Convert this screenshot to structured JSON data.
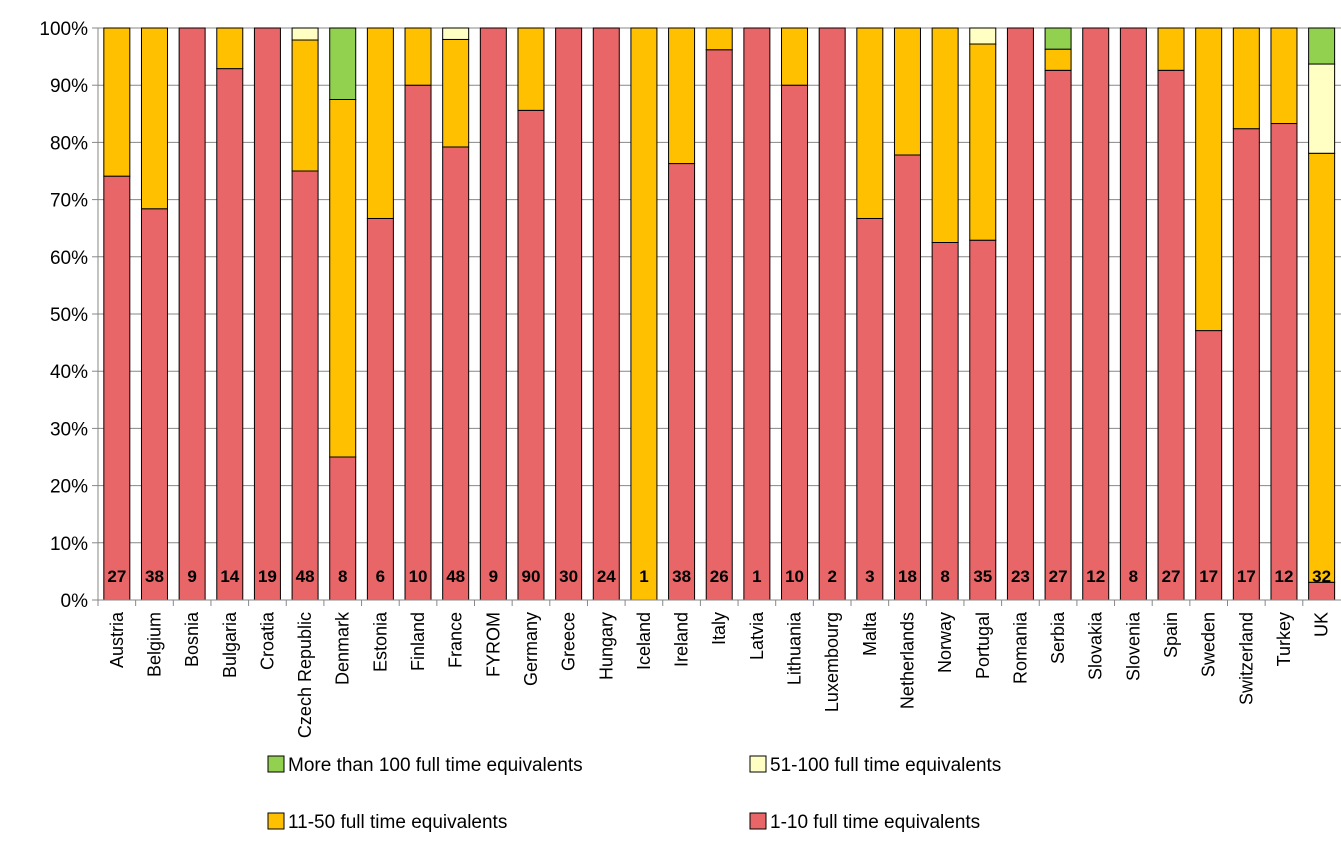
{
  "chart_data": {
    "type": "bar",
    "stacked": true,
    "percent": true,
    "categories": [
      "Austria",
      "Belgium",
      "Bosnia",
      "Bulgaria",
      "Croatia",
      "Czech Republic",
      "Denmark",
      "Estonia",
      "Finland",
      "France",
      "FYROM",
      "Germany",
      "Greece",
      "Hungary",
      "Iceland",
      "Ireland",
      "Italy",
      "Latvia",
      "Lithuania",
      "Luxembourg",
      "Malta",
      "Netherlands",
      "Norway",
      "Portugal",
      "Romania",
      "Serbia",
      "Slovakia",
      "Slovenia",
      "Spain",
      "Sweden",
      "Switzerland",
      "Turkey",
      "UK"
    ],
    "counts": [
      "27",
      "38",
      "9",
      "14",
      "19",
      "48",
      "8",
      "6",
      "10",
      "48",
      "9",
      "90",
      "30",
      "24",
      "1",
      "38",
      "26",
      "1",
      "10",
      "2",
      "3",
      "18",
      "8",
      "35",
      "23",
      "27",
      "12",
      "8",
      "27",
      "17",
      "17",
      "12",
      "32"
    ],
    "series": [
      {
        "name": "1-10 full time equivalents",
        "color": "#e96668",
        "values": [
          74.1,
          68.4,
          100,
          92.9,
          100,
          75.0,
          25.0,
          66.7,
          90.0,
          79.2,
          100,
          85.6,
          100,
          100,
          0,
          76.3,
          96.2,
          100,
          90.0,
          100,
          66.7,
          77.8,
          62.5,
          62.9,
          100,
          92.6,
          100,
          100,
          92.6,
          47.1,
          82.4,
          83.3,
          3.1
        ]
      },
      {
        "name": "11-50 full time equivalents",
        "color": "#ffc000",
        "values": [
          25.9,
          31.6,
          0,
          7.1,
          0,
          22.9,
          62.5,
          33.3,
          10.0,
          18.8,
          0,
          14.4,
          0,
          0,
          100,
          23.7,
          3.8,
          0,
          10.0,
          0,
          33.3,
          22.2,
          37.5,
          34.3,
          0,
          3.7,
          0,
          0,
          7.4,
          52.9,
          17.6,
          16.7,
          75.0
        ]
      },
      {
        "name": "51-100 full time equivalents",
        "color": "#ffffc4",
        "values": [
          0,
          0,
          0,
          0,
          0,
          2.1,
          0,
          0,
          0,
          2.0,
          0,
          0,
          0,
          0,
          0,
          0,
          0,
          0,
          0,
          0,
          0,
          0,
          0,
          2.8,
          0,
          0,
          0,
          0,
          0,
          0,
          0,
          0,
          15.6
        ]
      },
      {
        "name": "More than 100 full time equivalents",
        "color": "#92d050",
        "values": [
          0,
          0,
          0,
          0,
          0,
          0,
          12.5,
          0,
          0,
          0,
          0,
          0,
          0,
          0,
          0,
          0,
          0,
          0,
          0,
          0,
          0,
          0,
          0,
          0,
          0,
          3.7,
          0,
          0,
          0,
          0,
          0,
          0,
          6.3
        ]
      }
    ],
    "yticks": [
      "0%",
      "10%",
      "20%",
      "30%",
      "40%",
      "50%",
      "60%",
      "70%",
      "80%",
      "90%",
      "100%"
    ],
    "ylim": [
      0,
      100
    ],
    "grid": true,
    "legend": {
      "position": "bottom",
      "order": [
        "More than 100 full time equivalents",
        "51-100 full time equivalents",
        "11-50 full time equivalents",
        "1-10 full time equivalents"
      ]
    }
  }
}
